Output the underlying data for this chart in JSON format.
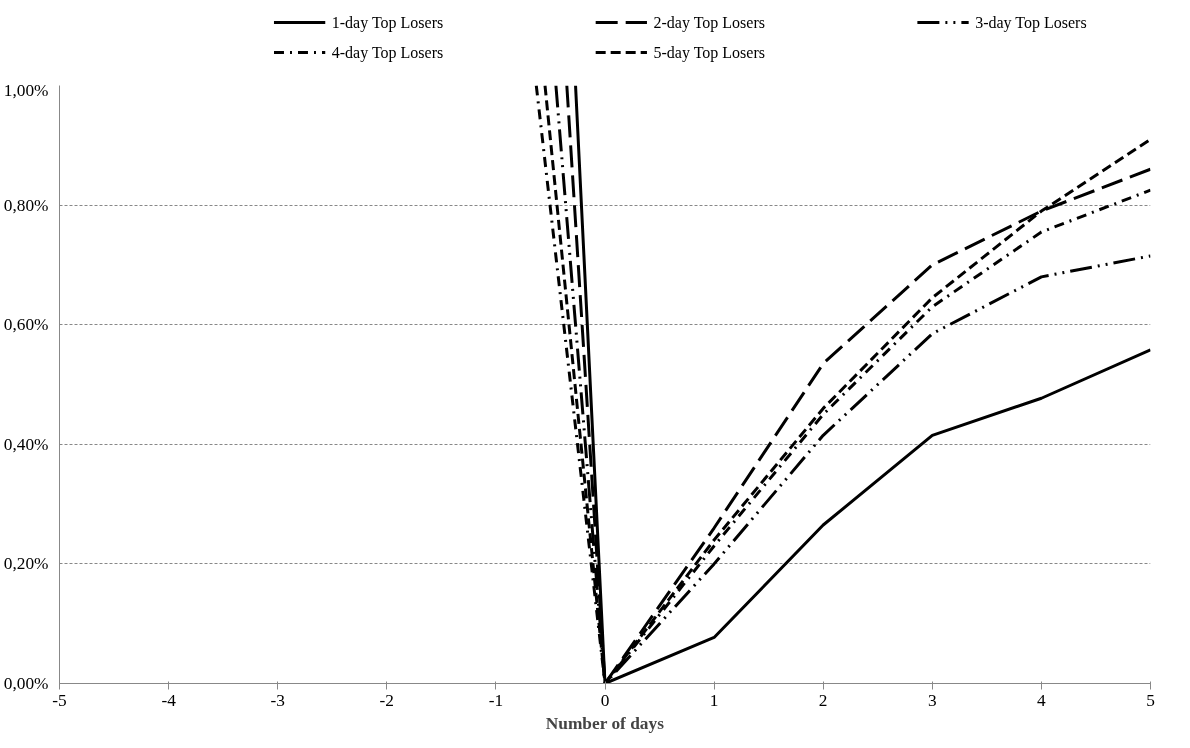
{
  "chart_data": {
    "type": "line",
    "xlabel": "Number of days",
    "xlim": [
      -5,
      5
    ],
    "xticks": [
      -5,
      -4,
      -3,
      -2,
      -1,
      0,
      1,
      2,
      3,
      4,
      5
    ],
    "ylim": [
      0,
      1
    ],
    "yticks": [
      {
        "value": 0,
        "label": "0,00%"
      },
      {
        "value": 0.2,
        "label": "0,20%"
      },
      {
        "value": 0.4,
        "label": "0,40%"
      },
      {
        "value": 0.6,
        "label": "0,60%"
      },
      {
        "value": 0.8,
        "label": "0,80%"
      },
      {
        "value": 1,
        "label": "1,00%"
      }
    ],
    "grid": "y",
    "legend": "top",
    "marker": "none",
    "series": [
      {
        "name": "1-day Top Losers",
        "color": "#000000",
        "line_style": "solid",
        "x": [
          -0.27,
          0,
          1,
          2,
          3,
          4,
          5
        ],
        "values": [
          1,
          0,
          0.077,
          0.265,
          0.415,
          0.477,
          0.558
        ]
      },
      {
        "name": "2-day Top Losers",
        "color": "#000000",
        "line_style": "longdash",
        "x": [
          -0.35,
          0,
          1,
          2,
          3,
          4,
          5
        ],
        "values": [
          1,
          0,
          0.26,
          0.535,
          0.7,
          0.79,
          0.86
        ]
      },
      {
        "name": "3-day Top Losers",
        "color": "#000000",
        "line_style": "longdashdotdot",
        "x": [
          -0.45,
          0,
          1,
          2,
          3,
          4,
          5
        ],
        "values": [
          1,
          0,
          0.2,
          0.415,
          0.585,
          0.68,
          0.715
        ]
      },
      {
        "name": "4-day Top Losers",
        "color": "#000000",
        "line_style": "dashdot",
        "x": [
          -0.63,
          0,
          1,
          2,
          3,
          4,
          5
        ],
        "values": [
          1,
          0,
          0.23,
          0.45,
          0.63,
          0.755,
          0.825
        ]
      },
      {
        "name": "5-day Top Losers",
        "color": "#000000",
        "line_style": "dashed",
        "x": [
          -0.55,
          0,
          1,
          2,
          3,
          4,
          5
        ],
        "values": [
          1,
          0,
          0.24,
          0.46,
          0.645,
          0.79,
          0.91
        ]
      }
    ]
  }
}
